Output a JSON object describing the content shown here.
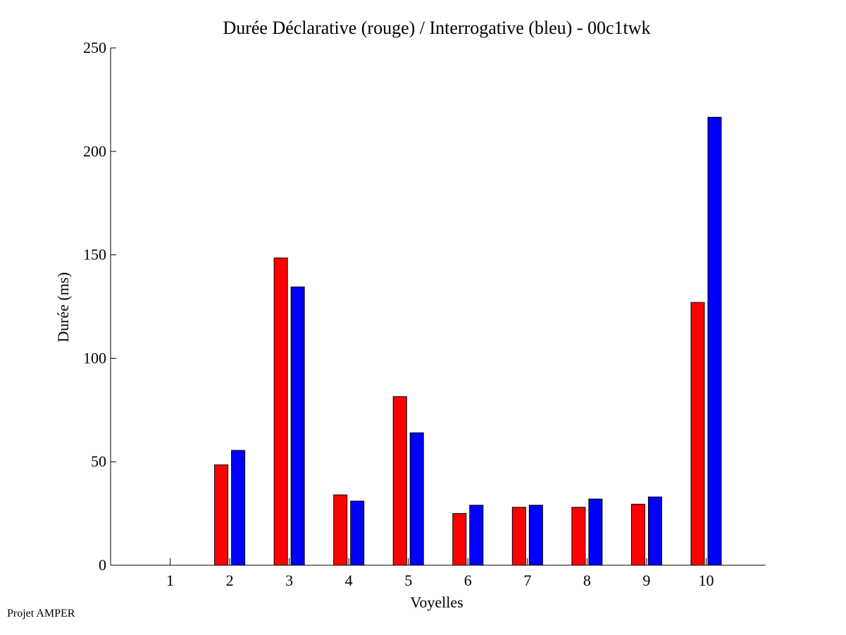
{
  "footer": "Projet AMPER",
  "chart_data": {
    "type": "bar",
    "title": "Durée Déclarative (rouge) / Interrogative (bleu) - 00c1twk",
    "xlabel": "Voyelles",
    "ylabel": "Durée (ms)",
    "categories": [
      "1",
      "2",
      "3",
      "4",
      "5",
      "6",
      "7",
      "8",
      "9",
      "10"
    ],
    "ylim": [
      0,
      250
    ],
    "yticks": [
      0,
      50,
      100,
      150,
      200,
      250
    ],
    "grid": false,
    "series": [
      {
        "color": "#ff0000",
        "values": [
          0,
          48.5,
          148.5,
          34,
          81.5,
          25,
          28,
          28,
          29.5,
          127
        ]
      },
      {
        "color": "#0000ff",
        "values": [
          0,
          55.5,
          134.5,
          31,
          64,
          29,
          29,
          32,
          33,
          216.5
        ]
      }
    ]
  }
}
